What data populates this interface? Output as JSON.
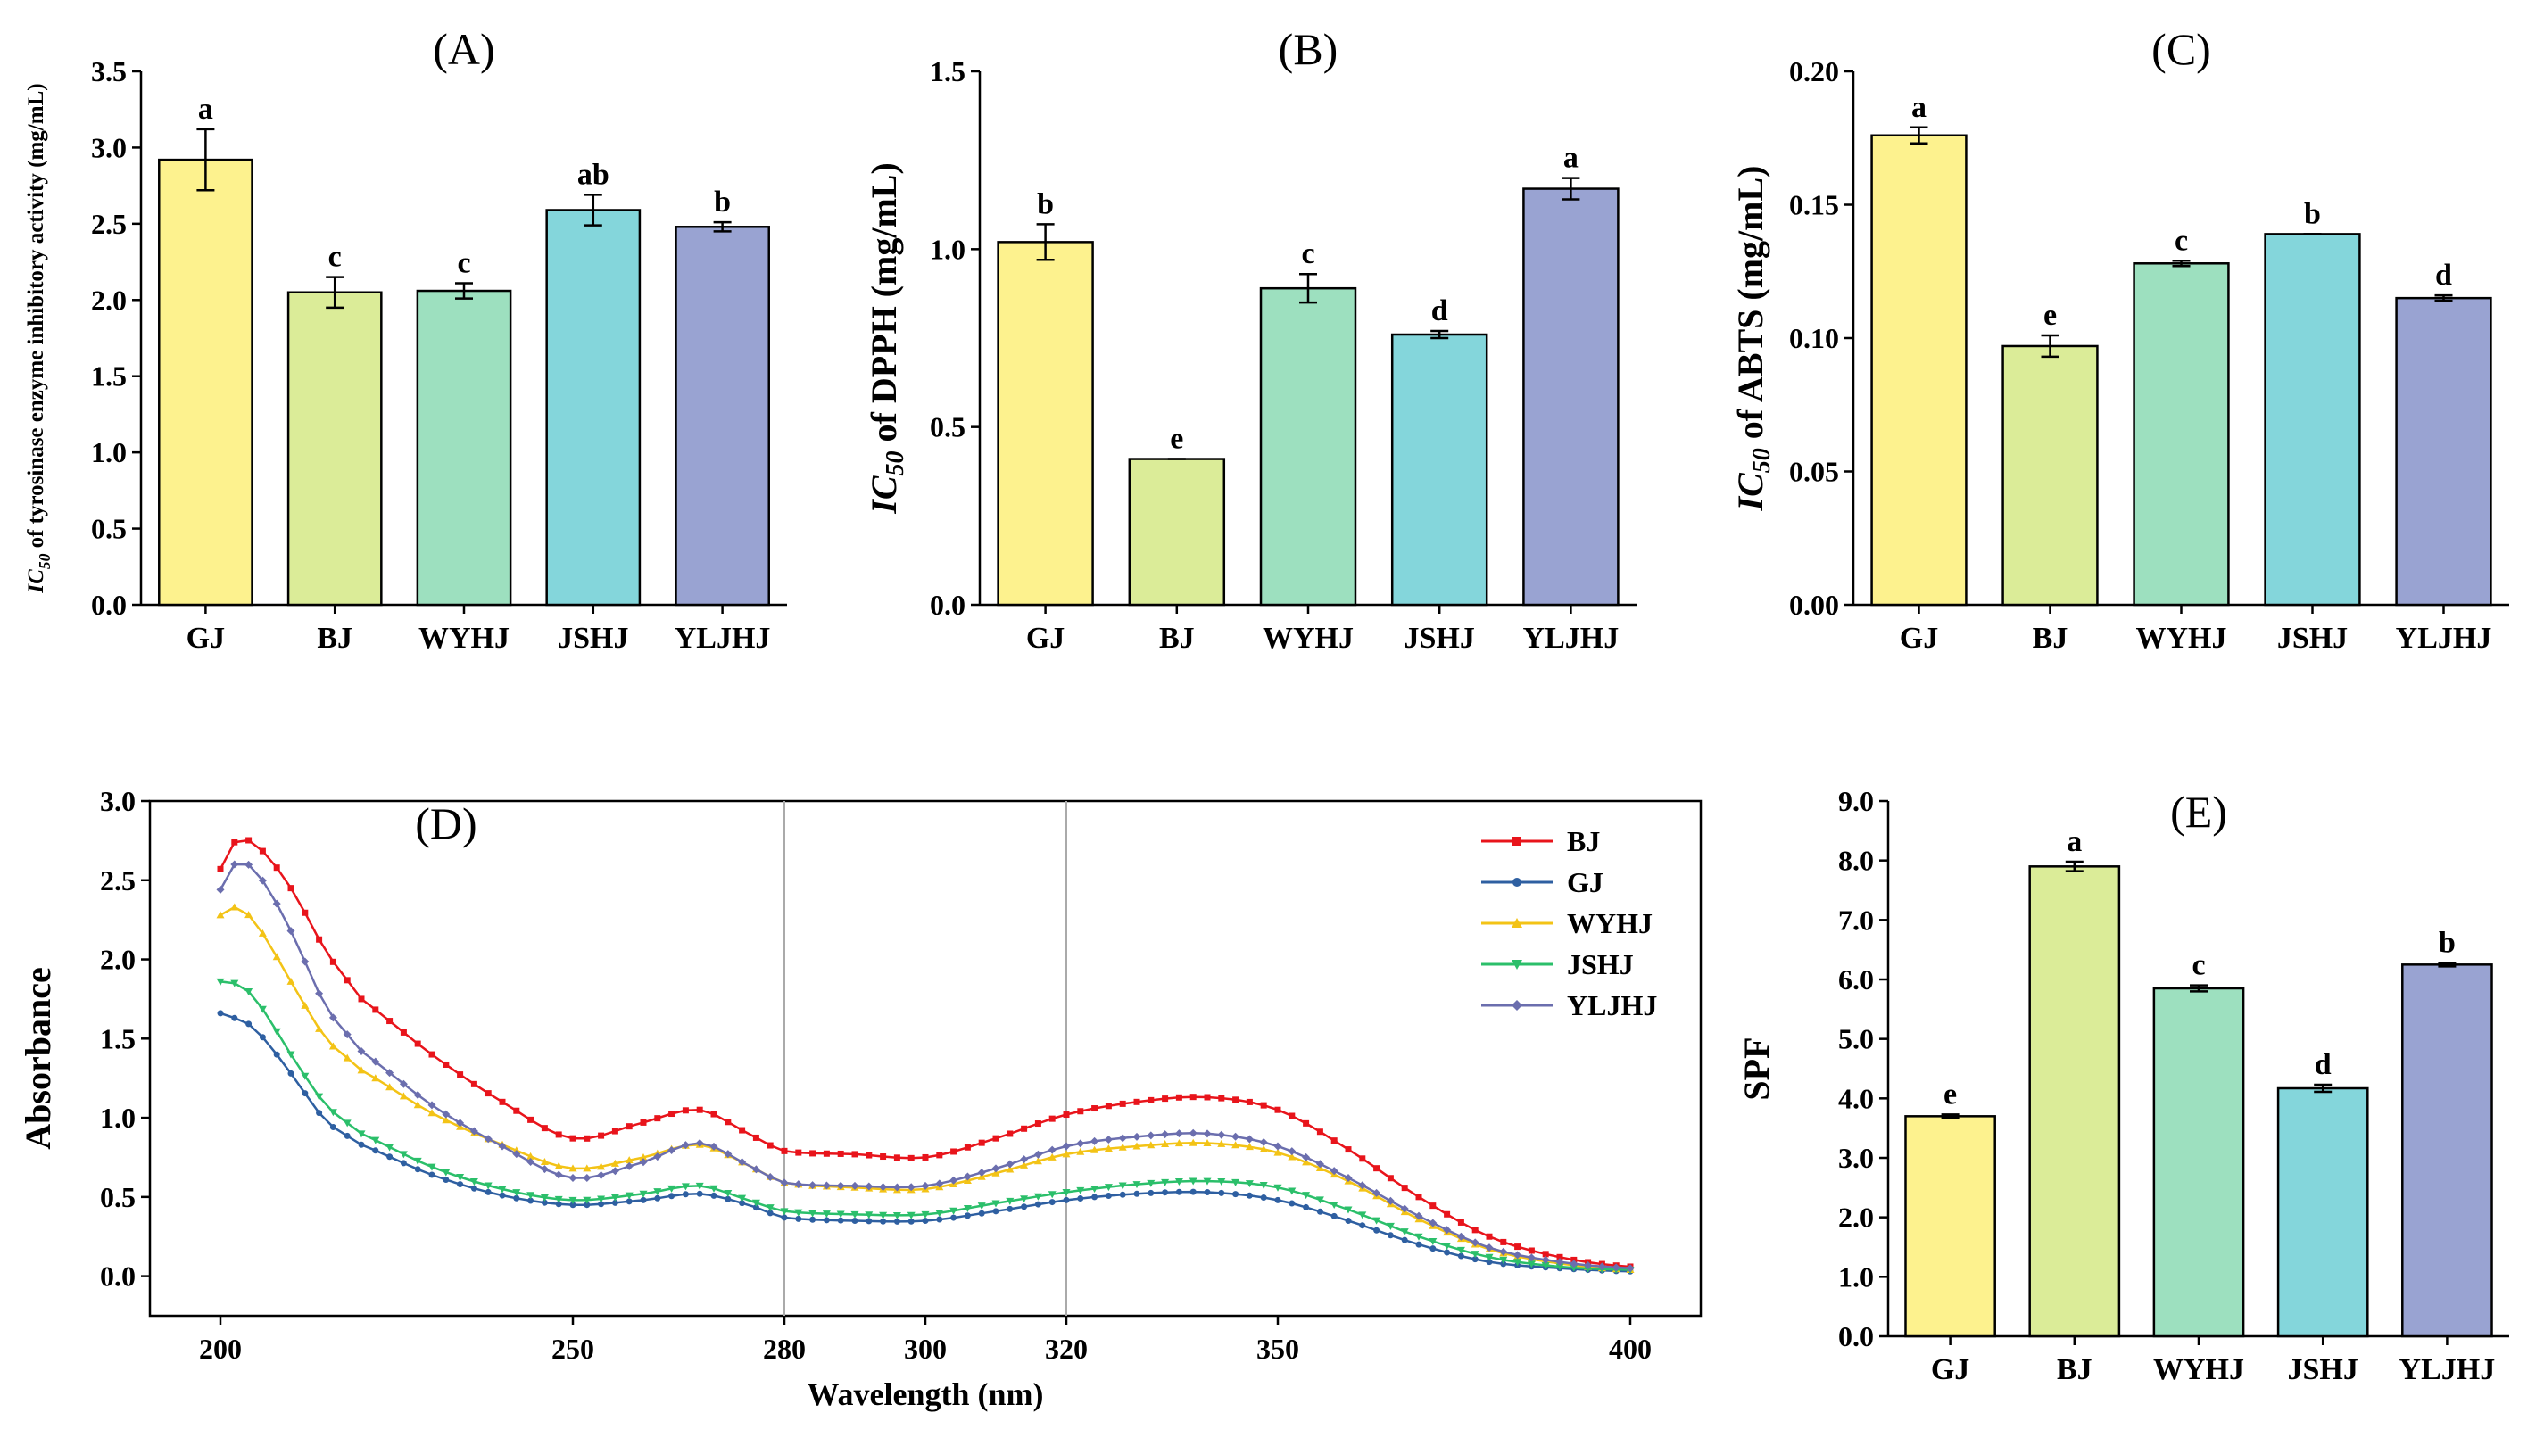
{
  "chart_data": [
    {
      "id": "A",
      "type": "bar",
      "title": "(A)",
      "ylabel_italic": "IC",
      "ylabel_sub": "50",
      "ylabel_rest": " of tyrosinase enzyme inhibitory activity (mg/mL)",
      "categories": [
        "GJ",
        "BJ",
        "WYHJ",
        "JSHJ",
        "YLJHJ"
      ],
      "values": [
        2.92,
        2.05,
        2.06,
        2.59,
        2.48
      ],
      "errors": [
        0.2,
        0.1,
        0.05,
        0.1,
        0.03
      ],
      "letters": [
        "a",
        "c",
        "c",
        "ab",
        "b"
      ],
      "colors": [
        "#fdf28e",
        "#dbec98",
        "#9de0bf",
        "#84d6db",
        "#99a3d2"
      ],
      "ylim": [
        0,
        3.5
      ],
      "yticks": [
        "0.0",
        "0.5",
        "1.0",
        "1.5",
        "2.0",
        "2.5",
        "3.0",
        "3.5"
      ]
    },
    {
      "id": "B",
      "type": "bar",
      "title": "(B)",
      "ylabel_italic": "IC",
      "ylabel_sub": "50",
      "ylabel_rest": " of DPPH (mg/mL)",
      "categories": [
        "GJ",
        "BJ",
        "WYHJ",
        "JSHJ",
        "YLJHJ"
      ],
      "values": [
        1.02,
        0.41,
        0.89,
        0.76,
        1.17
      ],
      "errors": [
        0.05,
        0.0,
        0.04,
        0.01,
        0.03
      ],
      "letters": [
        "b",
        "e",
        "c",
        "d",
        "a"
      ],
      "colors": [
        "#fdf28e",
        "#dbec98",
        "#9de0bf",
        "#84d6db",
        "#99a3d2"
      ],
      "ylim": [
        0,
        1.5
      ],
      "yticks": [
        "0.0",
        "0.5",
        "1.0",
        "1.5"
      ]
    },
    {
      "id": "C",
      "type": "bar",
      "title": "(C)",
      "ylabel_italic": "IC",
      "ylabel_sub": "50",
      "ylabel_rest": " of ABTS (mg/mL)",
      "categories": [
        "GJ",
        "BJ",
        "WYHJ",
        "JSHJ",
        "YLJHJ"
      ],
      "values": [
        0.176,
        0.097,
        0.128,
        0.139,
        0.115
      ],
      "errors": [
        0.003,
        0.004,
        0.001,
        0.0,
        0.001
      ],
      "letters": [
        "a",
        "e",
        "c",
        "b",
        "d"
      ],
      "colors": [
        "#fdf28e",
        "#dbec98",
        "#9de0bf",
        "#84d6db",
        "#99a3d2"
      ],
      "ylim": [
        0,
        0.2
      ],
      "yticks": [
        "0.00",
        "0.05",
        "0.10",
        "0.15",
        "0.20"
      ]
    },
    {
      "id": "D",
      "type": "line",
      "title": "(D)",
      "xlabel": "Wavelength (nm)",
      "ylabel": "Absorbance",
      "xlim": [
        190,
        410
      ],
      "ylim": [
        -0.25,
        3.0
      ],
      "xticks": [
        "200",
        "250",
        "280",
        "300",
        "320",
        "350",
        "400"
      ],
      "yticks": [
        "0.0",
        "0.5",
        "1.0",
        "1.5",
        "2.0",
        "2.5",
        "3.0"
      ],
      "reference_lines_x": [
        280,
        320
      ],
      "legend_position": "top-right",
      "anchors_x": [
        200,
        202,
        205,
        210,
        215,
        220,
        230,
        240,
        250,
        260,
        268,
        275,
        280,
        290,
        300,
        310,
        320,
        330,
        340,
        350,
        360,
        370,
        380,
        390,
        400
      ],
      "series": [
        {
          "name": "BJ",
          "color": "#e8141b",
          "marker": "square",
          "values": [
            2.57,
            2.74,
            2.72,
            2.45,
            2.05,
            1.75,
            1.4,
            1.1,
            0.87,
            0.97,
            1.05,
            0.9,
            0.79,
            0.77,
            0.75,
            0.87,
            1.02,
            1.1,
            1.13,
            1.05,
            0.8,
            0.5,
            0.25,
            0.12,
            0.06
          ]
        },
        {
          "name": "GJ",
          "color": "#2e5fa1",
          "marker": "circle",
          "values": [
            1.66,
            1.63,
            1.55,
            1.28,
            0.98,
            0.83,
            0.64,
            0.51,
            0.45,
            0.48,
            0.52,
            0.45,
            0.37,
            0.35,
            0.35,
            0.41,
            0.48,
            0.52,
            0.53,
            0.48,
            0.35,
            0.2,
            0.09,
            0.05,
            0.03
          ]
        },
        {
          "name": "WYHJ",
          "color": "#f3c316",
          "marker": "triangle",
          "values": [
            2.28,
            2.33,
            2.22,
            1.86,
            1.5,
            1.3,
            1.03,
            0.83,
            0.68,
            0.75,
            0.83,
            0.7,
            0.59,
            0.56,
            0.55,
            0.65,
            0.77,
            0.82,
            0.84,
            0.78,
            0.6,
            0.36,
            0.17,
            0.08,
            0.04
          ]
        },
        {
          "name": "JSHJ",
          "color": "#2bbf6a",
          "marker": "triangle-down",
          "values": [
            1.86,
            1.85,
            1.74,
            1.4,
            1.08,
            0.9,
            0.69,
            0.55,
            0.48,
            0.52,
            0.57,
            0.48,
            0.41,
            0.39,
            0.39,
            0.46,
            0.53,
            0.58,
            0.6,
            0.56,
            0.42,
            0.25,
            0.12,
            0.06,
            0.04
          ]
        },
        {
          "name": "YLJHJ",
          "color": "#6b6eae",
          "marker": "diamond",
          "values": [
            2.44,
            2.6,
            2.55,
            2.18,
            1.7,
            1.42,
            1.08,
            0.82,
            0.62,
            0.72,
            0.84,
            0.7,
            0.59,
            0.57,
            0.57,
            0.68,
            0.82,
            0.88,
            0.9,
            0.82,
            0.62,
            0.38,
            0.18,
            0.09,
            0.05
          ]
        }
      ]
    },
    {
      "id": "E",
      "type": "bar",
      "title": "(E)",
      "ylabel": "SPF",
      "categories": [
        "GJ",
        "BJ",
        "WYHJ",
        "JSHJ",
        "YLJHJ"
      ],
      "values": [
        3.7,
        7.9,
        5.85,
        4.17,
        6.25
      ],
      "errors": [
        0.03,
        0.08,
        0.05,
        0.06,
        0.03
      ],
      "letters": [
        "e",
        "a",
        "c",
        "d",
        "b"
      ],
      "colors": [
        "#fdf28e",
        "#dbec98",
        "#9de0bf",
        "#84d6db",
        "#99a3d2"
      ],
      "ylim": [
        0,
        9
      ],
      "yticks": [
        "0.0",
        "1.0",
        "2.0",
        "3.0",
        "4.0",
        "5.0",
        "6.0",
        "7.0",
        "8.0",
        "9.0"
      ]
    }
  ]
}
